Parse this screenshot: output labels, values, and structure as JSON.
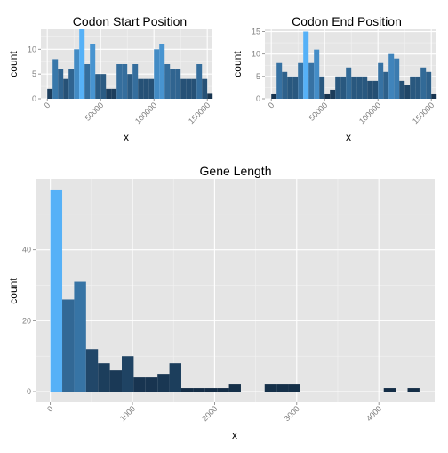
{
  "chart_data": [
    {
      "type": "bar",
      "title": "Codon Start Position",
      "xlabel": "x",
      "ylabel": "count",
      "xlim": [
        -6000,
        154000
      ],
      "ylim": [
        0,
        14
      ],
      "xticks": [
        "0",
        "50000",
        "100000",
        "150000"
      ],
      "xtick_values": [
        0,
        50000,
        100000,
        150000
      ],
      "yticks": [
        "0",
        "5",
        "10"
      ],
      "ytick_values": [
        0,
        5,
        10
      ],
      "bin_width": 5000,
      "bin_start": 0,
      "counts": [
        2,
        8,
        6,
        4,
        6,
        10,
        14,
        7,
        11,
        5,
        5,
        2,
        2,
        7,
        7,
        5,
        7,
        4,
        4,
        4,
        10,
        11,
        7,
        6,
        6,
        4,
        4,
        4,
        7,
        4,
        1
      ]
    },
    {
      "type": "bar",
      "title": "Codon End Position",
      "xlabel": "x",
      "ylabel": "count",
      "xlim": [
        -6000,
        154000
      ],
      "ylim": [
        0,
        15.5
      ],
      "xticks": [
        "0",
        "50000",
        "100000",
        "150000"
      ],
      "xtick_values": [
        0,
        50000,
        100000,
        150000
      ],
      "yticks": [
        "0",
        "5",
        "10",
        "15"
      ],
      "ytick_values": [
        0,
        5,
        10,
        15
      ],
      "bin_width": 5000,
      "bin_start": 0,
      "counts": [
        1,
        8,
        6,
        5,
        5,
        8,
        15,
        8,
        11,
        5,
        1,
        2,
        5,
        5,
        7,
        5,
        5,
        5,
        4,
        4,
        8,
        6,
        10,
        9,
        4,
        3,
        5,
        5,
        7,
        6,
        1
      ]
    },
    {
      "type": "bar",
      "title": "Gene Length",
      "xlabel": "x",
      "ylabel": "count",
      "xlim": [
        -180,
        4680
      ],
      "ylim": [
        -3,
        60
      ],
      "xticks": [
        "0",
        "1000",
        "2000",
        "3000",
        "4000"
      ],
      "xtick_values": [
        0,
        1000,
        2000,
        3000,
        4000
      ],
      "yticks": [
        "0",
        "20",
        "40"
      ],
      "ytick_values": [
        0,
        20,
        40
      ],
      "bin_width": 145,
      "bin_start": 0,
      "counts": [
        57,
        26,
        31,
        12,
        8,
        6,
        10,
        4,
        4,
        5,
        8,
        1,
        1,
        1,
        1,
        2,
        0,
        0,
        2,
        2,
        2,
        0,
        0,
        0,
        0,
        0,
        0,
        0,
        1,
        0,
        1
      ]
    }
  ],
  "colors": {
    "low": "#132b43",
    "high": "#56b1f7",
    "panel": "#e5e5e5"
  }
}
